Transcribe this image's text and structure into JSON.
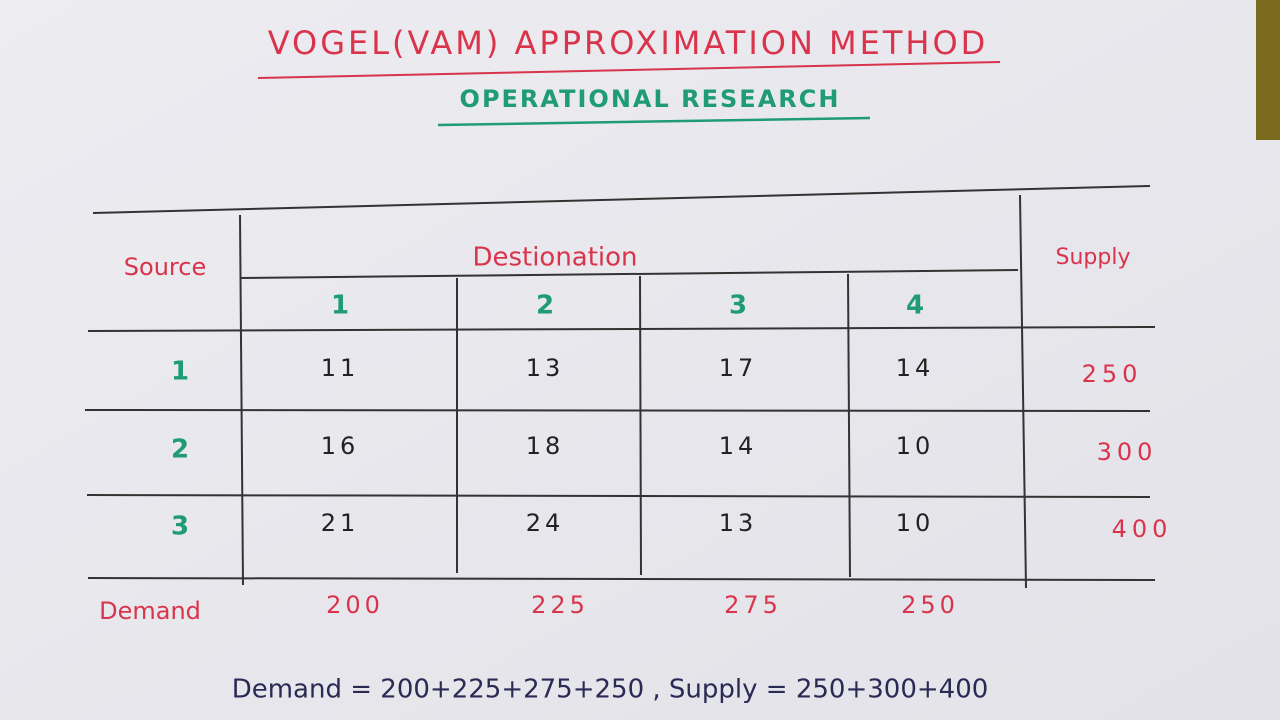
{
  "title": "VOGEL(VAM) APPROXIMATION METHOD",
  "subtitle": "OPERATIONAL RESEARCH",
  "table": {
    "source_header": "Source",
    "destination_header": "Destionation",
    "supply_header": "Supply",
    "destinations": [
      "1",
      "2",
      "3",
      "4"
    ],
    "rows": [
      {
        "source": "1",
        "costs": [
          11,
          13,
          17,
          14
        ],
        "supply": 250
      },
      {
        "source": "2",
        "costs": [
          16,
          18,
          14,
          10
        ],
        "supply": 300
      },
      {
        "source": "3",
        "costs": [
          21,
          24,
          13,
          10
        ],
        "supply": 400
      }
    ],
    "demand_label": "Demand",
    "demand": [
      200,
      225,
      275,
      250
    ]
  },
  "formula": "Demand = 200+225+275+250 , Supply = 250+300+400"
}
